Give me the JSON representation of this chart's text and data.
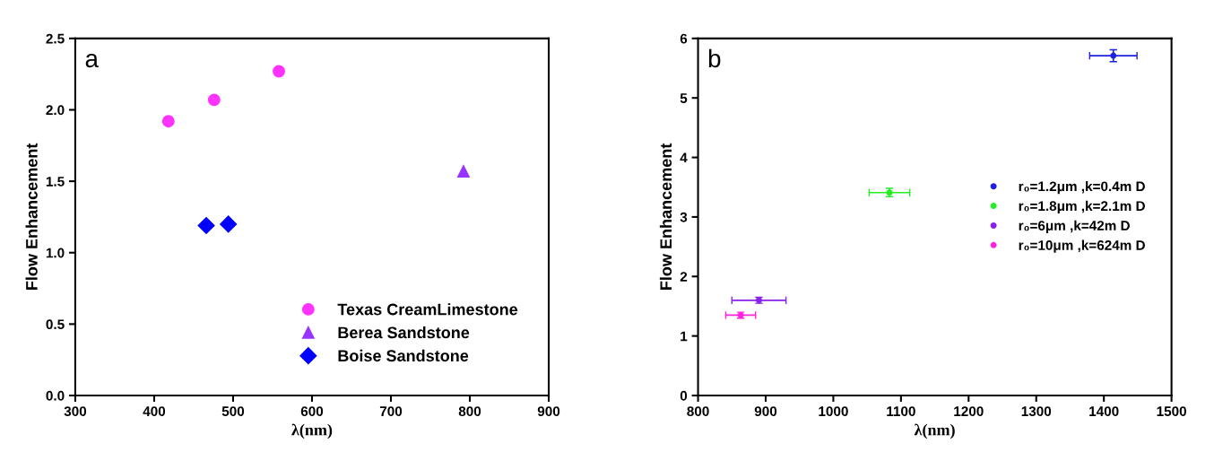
{
  "chart_data": [
    {
      "type": "scatter",
      "title": "a",
      "xlabel": "λ(nm)",
      "ylabel": "Flow Enhancement",
      "xlim": [
        300,
        900
      ],
      "xticks": [
        300,
        400,
        500,
        600,
        700,
        800,
        900
      ],
      "ylim": [
        0.0,
        2.5
      ],
      "yticks": [
        {
          "value": 0,
          "label": "0.0"
        },
        {
          "value": 0.5,
          "label": "0.5"
        },
        {
          "value": 1,
          "label": "1.0"
        },
        {
          "value": 1.5,
          "label": "1.5"
        },
        {
          "value": 2,
          "label": "2.0"
        },
        {
          "value": 2.5,
          "label": "2.5"
        }
      ],
      "grid": false,
      "legend": "bottom right",
      "series": [
        {
          "name": "Texas CreamLimestone",
          "color": "#ff33ff",
          "marker": "circle",
          "x": [
            418,
            476,
            558
          ],
          "values": [
            1.92,
            2.07,
            2.27
          ]
        },
        {
          "name": "Berea Sandstone",
          "color": "#9933ff",
          "marker": "triangle",
          "x": [
            792
          ],
          "values": [
            1.57
          ]
        },
        {
          "name": "Boise Sandstone",
          "color": "#0000ff",
          "marker": "diamond",
          "x": [
            466,
            494
          ],
          "values": [
            1.19,
            1.2
          ]
        }
      ]
    },
    {
      "type": "scatter",
      "title": "b",
      "xlabel": "λ(nm)",
      "ylabel": "Flow Enhancement",
      "xlim": [
        800,
        1500
      ],
      "xticks": [
        800,
        900,
        1000,
        1100,
        1200,
        1300,
        1400,
        1500
      ],
      "ylim": [
        0,
        6
      ],
      "yticks": [
        0,
        1,
        2,
        3,
        4,
        5,
        6
      ],
      "grid": false,
      "legend": "right",
      "marker": "circle",
      "series": [
        {
          "name": "r₀=1.2μm ,k=0.4m D",
          "color": "#2020e0",
          "x": [
            1414
          ],
          "values": [
            5.71
          ],
          "errors": [
            0.1
          ],
          "xerrors": [
            35
          ]
        },
        {
          "name": "r₀=1.8μm ,k=2.1m D",
          "color": "#22ee22",
          "x": [
            1083
          ],
          "values": [
            3.41
          ],
          "errors": [
            0.07
          ],
          "xerrors": [
            30
          ]
        },
        {
          "name": "r₀=6μm ,k=42m D",
          "color": "#8822ee",
          "x": [
            890
          ],
          "values": [
            1.6
          ],
          "errors": [
            0.05
          ],
          "xerrors": [
            40
          ]
        },
        {
          "name": "r₀=10μm ,k=624m D",
          "color": "#ff22dd",
          "x": [
            863
          ],
          "values": [
            1.35
          ],
          "errors": [
            0.05
          ],
          "xerrors": [
            22
          ]
        }
      ]
    }
  ]
}
